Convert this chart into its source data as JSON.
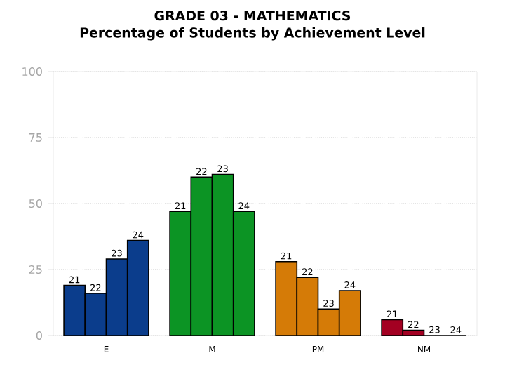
{
  "chart_data": {
    "type": "bar",
    "title": "GRADE 03 - MATHEMATICS",
    "subtitle": "Percentage of Students by Achievement Level",
    "categories": [
      "E",
      "M",
      "PM",
      "NM"
    ],
    "series": [
      {
        "name": "21",
        "colors": [
          "#0b3d8c",
          "#0c9424",
          "#d57b07",
          "#a30022"
        ],
        "values": [
          19,
          47,
          28,
          6
        ]
      },
      {
        "name": "22",
        "colors": [
          "#0b3d8c",
          "#0c9424",
          "#d57b07",
          "#a30022"
        ],
        "values": [
          16,
          60,
          22,
          2
        ]
      },
      {
        "name": "23",
        "colors": [
          "#0b3d8c",
          "#0c9424",
          "#d57b07",
          "#a30022"
        ],
        "values": [
          29,
          61,
          10,
          0
        ]
      },
      {
        "name": "24",
        "colors": [
          "#0b3d8c",
          "#0c9424",
          "#d57b07",
          "#a30022"
        ],
        "values": [
          36,
          47,
          17,
          0
        ]
      }
    ],
    "ylim": [
      0,
      100
    ],
    "yticks": [
      0,
      25,
      50,
      75,
      100
    ],
    "grid": "y"
  }
}
